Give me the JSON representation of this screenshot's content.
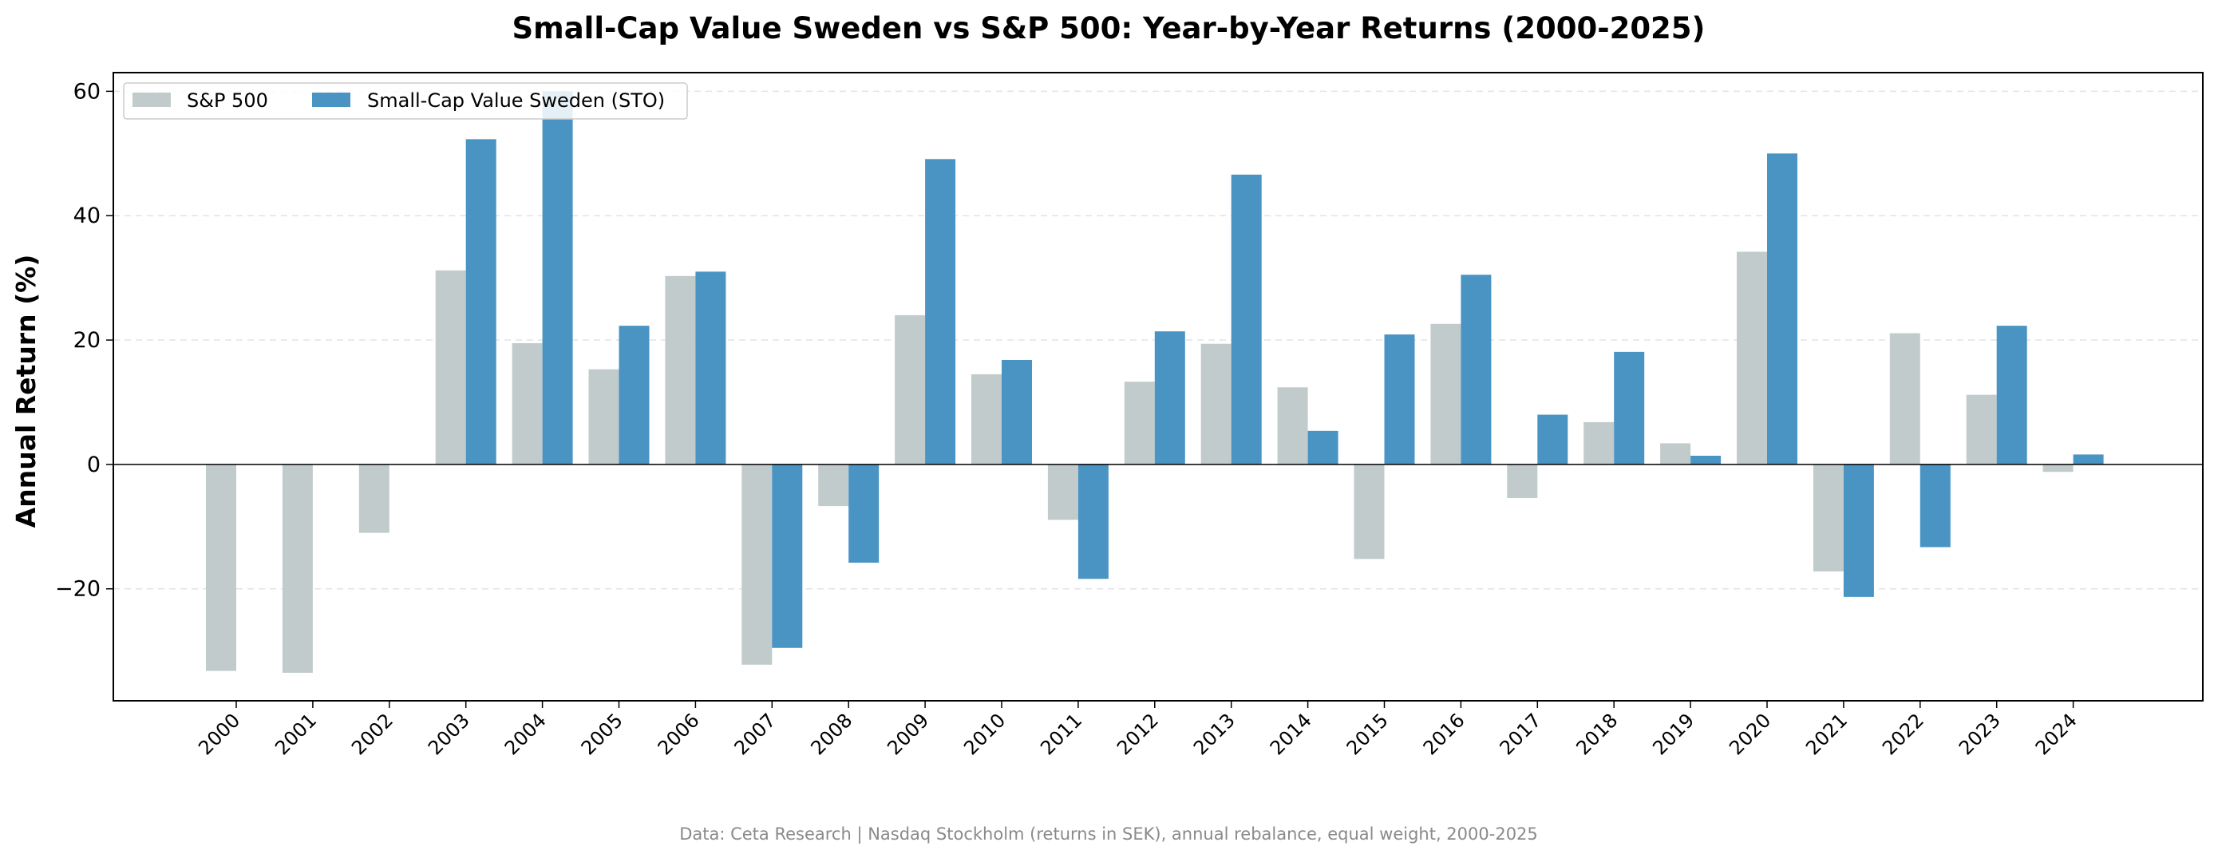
{
  "chart_data": {
    "type": "bar",
    "title": "Small-Cap Value Sweden vs S&P 500: Year-by-Year Returns (2000-2025)",
    "xlabel": "",
    "ylabel": "Annual Return (%)",
    "ylim": [
      -38,
      63
    ],
    "yticks": [
      60,
      40,
      20,
      0,
      -20
    ],
    "ytick_labels": [
      "60",
      "40",
      "20",
      "0",
      "−20"
    ],
    "grid": "horizontal dashed",
    "legend_position": "top-left",
    "categories": [
      "2000",
      "2001",
      "2002",
      "2003",
      "2004",
      "2005",
      "2006",
      "2007",
      "2008",
      "2009",
      "2010",
      "2011",
      "2012",
      "2013",
      "2014",
      "2015",
      "2016",
      "2017",
      "2018",
      "2019",
      "2020",
      "2021",
      "2022",
      "2023",
      "2024"
    ],
    "series": [
      {
        "name": "S&P 500",
        "color": "#c2cbcb",
        "values": [
          -33.2,
          -33.5,
          -11.0,
          31.2,
          19.5,
          15.3,
          30.3,
          -32.2,
          -6.7,
          24.0,
          14.5,
          -8.9,
          13.3,
          19.4,
          12.4,
          -15.2,
          22.6,
          -5.4,
          6.8,
          3.4,
          34.2,
          -17.2,
          21.1,
          11.2,
          -1.2
        ]
      },
      {
        "name": "Small-Cap Value Sweden (STO)",
        "color": "#4a94c4",
        "values": [
          null,
          null,
          null,
          52.3,
          60.0,
          22.3,
          31.0,
          -29.5,
          -15.8,
          49.1,
          16.8,
          -18.4,
          21.4,
          46.6,
          5.4,
          20.9,
          30.5,
          8.0,
          18.1,
          1.4,
          50.0,
          -21.3,
          -13.3,
          22.3,
          1.6
        ]
      }
    ],
    "footnote": "Data: Ceta Research | Nasdaq Stockholm (returns in SEK), annual rebalance, equal weight, 2000-2025"
  }
}
